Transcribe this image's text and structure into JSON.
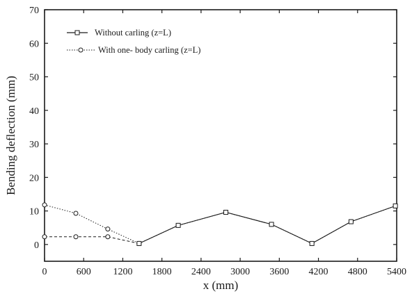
{
  "chart_data": {
    "type": "line",
    "xlabel": "x (mm)",
    "ylabel": "Bending deflection (mm)",
    "xlim": [
      0,
      5400
    ],
    "ylim": [
      -5,
      70
    ],
    "x_ticks": [
      0,
      600,
      1200,
      1800,
      2400,
      3000,
      3600,
      4200,
      4800,
      5400
    ],
    "y_ticks": [
      0,
      10,
      20,
      30,
      40,
      50,
      60,
      70
    ],
    "grid": false,
    "legend_position": "top-left",
    "series": [
      {
        "name": "Without carling (z=L)",
        "marker": "square",
        "line_style": "solid",
        "x": [
          1450,
          2050,
          2780,
          3480,
          4100,
          4700,
          5380
        ],
        "y": [
          0.3,
          5.7,
          9.6,
          6.0,
          0.3,
          6.8,
          11.5
        ]
      },
      {
        "name": "With one- body carling (z=L)",
        "marker": "circle",
        "line_style": "dotted",
        "x": [
          0,
          480,
          970,
          1450,
          2050,
          2780,
          3480,
          4100,
          4700,
          5380
        ],
        "y": [
          11.8,
          9.3,
          4.6,
          0.3,
          5.7,
          9.6,
          6.0,
          0.3,
          6.8,
          11.5
        ]
      },
      {
        "name": "",
        "marker": "circle",
        "line_style": "dashed",
        "x": [
          0,
          480,
          970,
          1450
        ],
        "y": [
          2.3,
          2.3,
          2.3,
          0.3
        ]
      }
    ]
  }
}
